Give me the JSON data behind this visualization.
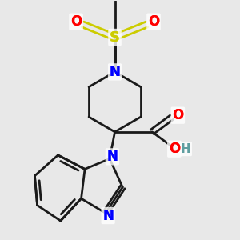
{
  "bg_color": "#e8e8e8",
  "bond_color": "#1a1a1a",
  "N_color": "#0000ff",
  "O_color": "#ff0000",
  "S_color": "#cccc00",
  "H_color": "#5f9ea0",
  "line_width": 2.0,
  "figsize": [
    3.0,
    3.0
  ],
  "dpi": 100,
  "xlim": [
    -2.0,
    2.2
  ],
  "ylim": [
    -2.6,
    2.0
  ]
}
